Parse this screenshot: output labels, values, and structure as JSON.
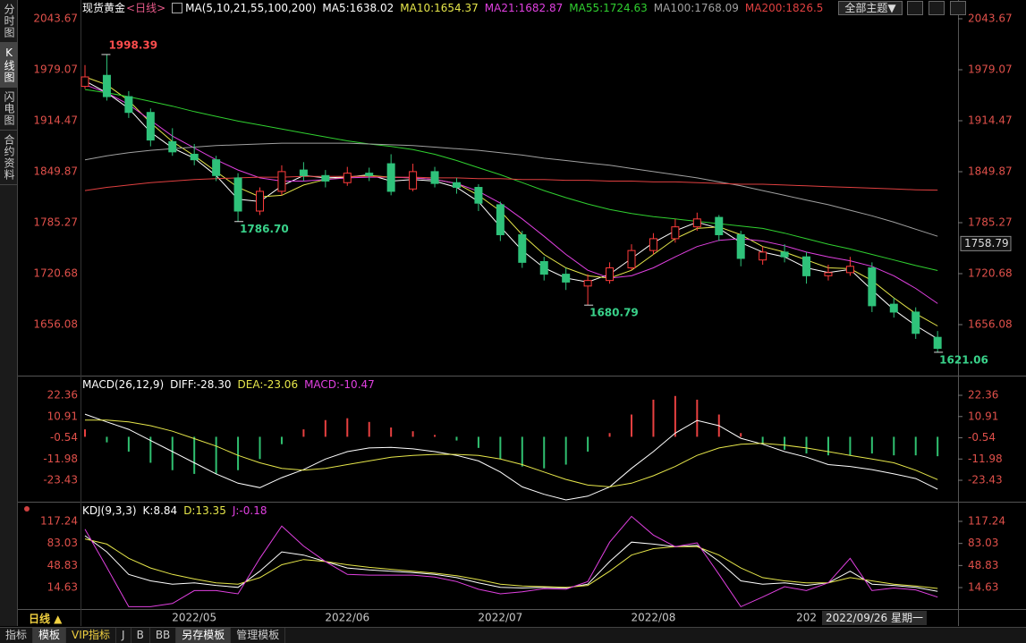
{
  "sidebar": [
    "分时图",
    "K线图",
    "闪电图",
    "合约资料"
  ],
  "theme_button": "全部主题▼",
  "period_label": "日线 ▲",
  "cursor_date": "2022/09/26 星期一",
  "tabs": [
    "指标",
    "模板",
    "VIP指标",
    "J",
    "B",
    "BB",
    "另存模板",
    "管理模板"
  ],
  "chart_data": [
    {
      "type": "candlestick",
      "title": "现货黄金",
      "subtitle": "<日线>",
      "indicator": "MA(5,10,21,55,100,200)",
      "categories": [
        null,
        null,
        null,
        null,
        null,
        "2022/05",
        null,
        null,
        null,
        null,
        null,
        null,
        "2022/06",
        null,
        null,
        null,
        null,
        null,
        null,
        "2022/07",
        null,
        null,
        null,
        null,
        null,
        null,
        "2022/08",
        null,
        null,
        null,
        null,
        null,
        null,
        "202",
        null,
        null,
        null,
        null,
        null,
        null
      ],
      "open": [
        1958,
        1972,
        1945,
        1925,
        1888,
        1872,
        1865,
        1842,
        1800,
        1825,
        1852,
        1845,
        1836,
        1848,
        1860,
        1828,
        1850,
        1836,
        1830,
        1808,
        1770,
        1736,
        1720,
        1705,
        1712,
        1728,
        1750,
        1765,
        1780,
        1792,
        1770,
        1738,
        1748,
        1742,
        1718,
        1722,
        1728,
        1682,
        1672,
        1640
      ],
      "high": [
        1985,
        1998.39,
        1952,
        1930,
        1905,
        1885,
        1870,
        1848,
        1830,
        1858,
        1862,
        1852,
        1856,
        1855,
        1872,
        1860,
        1856,
        1842,
        1834,
        1812,
        1775,
        1742,
        1728,
        1720,
        1735,
        1758,
        1772,
        1790,
        1798,
        1795,
        1775,
        1755,
        1758,
        1748,
        1732,
        1742,
        1735,
        1690,
        1678,
        1648
      ],
      "low": [
        1955,
        1940,
        1918,
        1882,
        1870,
        1858,
        1838,
        1786.7,
        1795,
        1820,
        1838,
        1830,
        1832,
        1838,
        1820,
        1825,
        1830,
        1822,
        1800,
        1762,
        1728,
        1712,
        1700,
        1680.79,
        1708,
        1725,
        1745,
        1760,
        1775,
        1762,
        1730,
        1732,
        1735,
        1708,
        1712,
        1718,
        1672,
        1665,
        1638,
        1621.06
      ],
      "close": [
        1970,
        1945,
        1925,
        1890,
        1875,
        1865,
        1845,
        1800,
        1825,
        1850,
        1845,
        1838,
        1848,
        1845,
        1825,
        1850,
        1835,
        1830,
        1810,
        1770,
        1735,
        1720,
        1710,
        1712,
        1728,
        1750,
        1765,
        1780,
        1790,
        1770,
        1740,
        1748,
        1742,
        1718,
        1722,
        1730,
        1680,
        1672,
        1645,
        1626
      ],
      "high_labels": [
        null,
        "1998.39",
        null,
        null,
        null,
        null,
        null,
        null,
        null,
        null,
        null,
        null,
        null,
        null,
        null,
        null,
        null,
        null,
        null,
        null,
        null,
        null,
        null,
        null,
        null,
        null,
        null,
        null,
        null,
        null,
        null,
        null,
        null,
        null,
        null,
        null,
        null,
        null,
        null,
        null
      ],
      "low_labels": [
        null,
        null,
        null,
        null,
        null,
        null,
        null,
        "1786.70",
        null,
        null,
        null,
        null,
        null,
        null,
        null,
        null,
        null,
        null,
        null,
        null,
        null,
        null,
        null,
        "1680.79",
        null,
        null,
        null,
        null,
        null,
        null,
        null,
        null,
        null,
        null,
        null,
        null,
        null,
        null,
        null,
        "1621.06"
      ],
      "up_color": "#ff3b3b",
      "down_color": "#2fc27a",
      "series": [
        {
          "name": "MA5:1638.02",
          "color": "#ffffff",
          "values": [
            1965,
            1950,
            1930,
            1900,
            1880,
            1867,
            1845,
            1815,
            1812,
            1832,
            1845,
            1842,
            1843,
            1846,
            1838,
            1840,
            1838,
            1830,
            1812,
            1780,
            1750,
            1728,
            1715,
            1710,
            1720,
            1740,
            1760,
            1775,
            1786,
            1778,
            1760,
            1748,
            1742,
            1728,
            1722,
            1726,
            1700,
            1675,
            1655,
            1638.02
          ]
        },
        {
          "name": "MA10:1654.37",
          "color": "#e6e64a",
          "values": [
            1970,
            1960,
            1940,
            1912,
            1888,
            1870,
            1850,
            1830,
            1818,
            1820,
            1833,
            1840,
            1843,
            1845,
            1843,
            1842,
            1840,
            1835,
            1820,
            1800,
            1770,
            1745,
            1728,
            1718,
            1715,
            1725,
            1745,
            1765,
            1778,
            1780,
            1770,
            1755,
            1748,
            1738,
            1728,
            1727,
            1712,
            1690,
            1670,
            1654.37
          ]
        },
        {
          "name": "MA21:1682.87",
          "color": "#e040e0",
          "values": [
            1960,
            1950,
            1935,
            1915,
            1895,
            1880,
            1865,
            1852,
            1842,
            1838,
            1838,
            1840,
            1842,
            1843,
            1843,
            1842,
            1840,
            1835,
            1825,
            1810,
            1790,
            1768,
            1745,
            1725,
            1715,
            1718,
            1728,
            1742,
            1755,
            1763,
            1765,
            1762,
            1756,
            1748,
            1742,
            1737,
            1730,
            1718,
            1702,
            1682.87
          ]
        },
        {
          "name": "MA55:1724.63",
          "color": "#30d030",
          "values": [
            1954,
            1950,
            1945,
            1939,
            1933,
            1926,
            1920,
            1914,
            1909,
            1904,
            1899,
            1894,
            1889,
            1885,
            1882,
            1878,
            1872,
            1864,
            1855,
            1846,
            1836,
            1826,
            1817,
            1809,
            1802,
            1797,
            1793,
            1790,
            1787,
            1784,
            1781,
            1778,
            1772,
            1765,
            1758,
            1752,
            1745,
            1738,
            1731,
            1724.63
          ]
        },
        {
          "name": "MA100:1768.09",
          "color": "#a0a0a0",
          "values": [
            1865,
            1870,
            1874,
            1877,
            1879,
            1881,
            1883,
            1884,
            1885,
            1886,
            1886,
            1886,
            1886,
            1885,
            1884,
            1883,
            1881,
            1879,
            1877,
            1874,
            1871,
            1867,
            1864,
            1861,
            1858,
            1854,
            1850,
            1846,
            1842,
            1837,
            1832,
            1826,
            1820,
            1814,
            1808,
            1801,
            1794,
            1786,
            1777,
            1768.09
          ]
        },
        {
          "name": "MA200:1826.5",
          "color": "#e04040",
          "values": [
            1826,
            1830,
            1833,
            1836,
            1838,
            1840,
            1841,
            1842,
            1843,
            1843,
            1844,
            1844,
            1844,
            1844,
            1843,
            1843,
            1842,
            1842,
            1841,
            1841,
            1840,
            1840,
            1839,
            1839,
            1838,
            1838,
            1837,
            1837,
            1836,
            1835,
            1834,
            1834,
            1833,
            1832,
            1831,
            1830,
            1829,
            1828,
            1827,
            1826.5
          ]
        }
      ],
      "ylim": [
        1591.48,
        2043.67
      ],
      "yticks": [
        2043.67,
        1979.07,
        1914.47,
        1849.87,
        1785.27,
        1720.68,
        1656.08
      ],
      "marker_price": 1758.79
    },
    {
      "type": "macd",
      "title": "MACD(26,12,9)",
      "bar_up_color": "#e84040",
      "bar_down_color": "#30c070",
      "series": [
        {
          "name": "DIFF:-28.30",
          "color": "#ffffff",
          "values": [
            12.2,
            8,
            4,
            -2,
            -8,
            -14,
            -20,
            -25,
            -27.4,
            -22,
            -17.7,
            -12,
            -8,
            -6,
            -5.7,
            -6.5,
            -8,
            -10,
            -13,
            -19,
            -27,
            -31,
            -34,
            -32,
            -27,
            -17,
            -8,
            2,
            8.8,
            6,
            -0.8,
            -4,
            -8,
            -11,
            -15,
            -16,
            -17.7,
            -20,
            -22.5,
            -28.3
          ]
        },
        {
          "name": "DEA:-23.06",
          "color": "#e6e64a",
          "values": [
            9,
            9,
            8,
            6,
            3,
            -1,
            -5,
            -10,
            -14,
            -17,
            -18,
            -17,
            -15,
            -13,
            -11,
            -10,
            -9.5,
            -9.5,
            -10,
            -12,
            -15,
            -19,
            -23,
            -26,
            -27,
            -25,
            -21,
            -16,
            -10,
            -6,
            -4,
            -3.5,
            -4.5,
            -6,
            -8,
            -10,
            -12,
            -14,
            -18,
            -23.06
          ]
        },
        {
          "name": "MACD:-10.47",
          "color": "#e040e0",
          "bars": true,
          "values": [
            4,
            -3,
            -8,
            -14,
            -18,
            -20,
            -20,
            -18,
            -12,
            -4,
            4,
            9,
            10,
            8,
            5,
            3,
            1,
            -2,
            -6,
            -12,
            -16,
            -17,
            -15,
            -8,
            2,
            12,
            20,
            22,
            20,
            12,
            2,
            -4,
            -7,
            -9,
            -10,
            -10,
            -9,
            -10,
            -10,
            -10.47
          ]
        }
      ],
      "ylim": [
        -34.5,
        24.3
      ],
      "yticks": [
        22.36,
        10.91,
        -0.54,
        -11.98,
        -23.43
      ]
    },
    {
      "type": "line",
      "title": "KDJ(9,3,3)",
      "series": [
        {
          "name": "K:8.84",
          "color": "#ffffff",
          "values": [
            95,
            70,
            35,
            25,
            20,
            22,
            18,
            15,
            40,
            70,
            65,
            55,
            45,
            42,
            40,
            38,
            35,
            30,
            22,
            15,
            14,
            15,
            14,
            20,
            55,
            85,
            82,
            78,
            80,
            55,
            25,
            20,
            22,
            18,
            22,
            40,
            20,
            18,
            15,
            8.84
          ]
        },
        {
          "name": "D:13.35",
          "color": "#e6e64a",
          "values": [
            90,
            82,
            60,
            45,
            35,
            28,
            22,
            20,
            30,
            50,
            58,
            55,
            50,
            46,
            43,
            40,
            37,
            33,
            27,
            20,
            17,
            16,
            15,
            18,
            40,
            65,
            75,
            78,
            78,
            65,
            45,
            30,
            25,
            22,
            22,
            30,
            25,
            20,
            17,
            13.35
          ]
        },
        {
          "name": "J:-0.18",
          "color": "#e040e0",
          "values": [
            105,
            46,
            -15,
            -15,
            -10,
            10,
            10,
            5,
            60,
            110,
            79,
            55,
            35,
            34,
            34,
            34,
            31,
            24,
            12,
            5,
            8,
            13,
            12,
            24,
            85,
            125,
            96,
            78,
            84,
            35,
            -15,
            0,
            16,
            10,
            22,
            60,
            10,
            14,
            11,
            -0.18
          ]
        }
      ],
      "ylim": [
        -17.2,
        128.3
      ],
      "yticks": [
        117.24,
        83.03,
        48.83,
        14.63
      ]
    }
  ]
}
